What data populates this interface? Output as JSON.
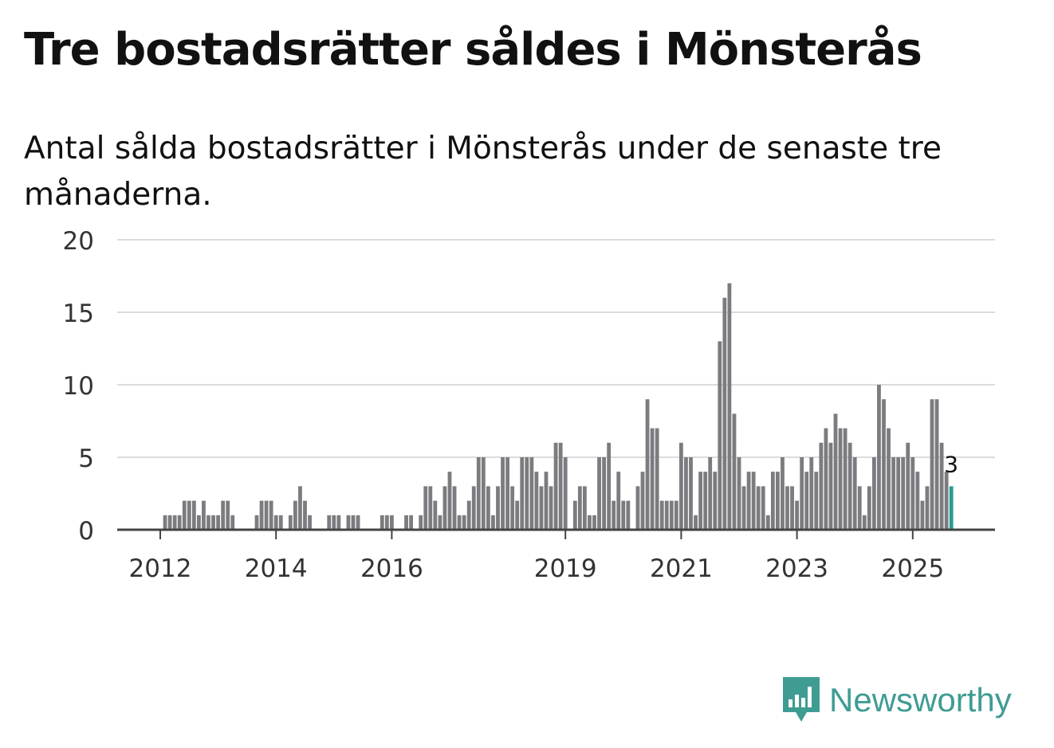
{
  "header": {
    "title": "Tre bostadsrätter såldes i Mönsterås",
    "subtitle": "Antal sålda bostadsrätter i Mönsterås under de senaste tre månaderna."
  },
  "brand": {
    "name": "Newsworthy",
    "icon": "newsworthy-logo-icon",
    "color": "#3f9c93"
  },
  "colors": {
    "bar": "#7b7b80",
    "highlight": "#2a9c94",
    "grid": "#dcdcdc",
    "axis": "#444444",
    "text": "#333333"
  },
  "chart_data": {
    "type": "bar",
    "title": "Tre bostadsrätter såldes i Mönsterås",
    "xlabel": "",
    "ylabel": "",
    "ylim": [
      0,
      20
    ],
    "yticks": [
      0,
      5,
      10,
      15,
      20
    ],
    "grid": true,
    "x_start": "2011-01",
    "xticks": [
      {
        "label": "2012",
        "month_index": 12
      },
      {
        "label": "2014",
        "month_index": 36
      },
      {
        "label": "2016",
        "month_index": 60
      },
      {
        "label": "2019",
        "month_index": 96
      },
      {
        "label": "2021",
        "month_index": 120
      },
      {
        "label": "2023",
        "month_index": 144
      },
      {
        "label": "2025",
        "month_index": 168
      }
    ],
    "highlight_label": "3",
    "values": [
      0,
      0,
      0,
      0,
      0,
      0,
      0,
      0,
      0,
      0,
      0,
      0,
      0,
      1,
      1,
      1,
      1,
      2,
      2,
      2,
      1,
      2,
      1,
      1,
      1,
      2,
      2,
      1,
      0,
      0,
      0,
      0,
      1,
      2,
      2,
      2,
      1,
      1,
      0,
      1,
      2,
      3,
      2,
      1,
      0,
      0,
      0,
      1,
      1,
      1,
      0,
      1,
      1,
      1,
      0,
      0,
      0,
      0,
      1,
      1,
      1,
      0,
      0,
      1,
      1,
      0,
      1,
      3,
      3,
      2,
      1,
      3,
      4,
      3,
      1,
      1,
      2,
      3,
      5,
      5,
      3,
      1,
      3,
      5,
      5,
      3,
      2,
      5,
      5,
      5,
      4,
      3,
      4,
      3,
      6,
      6,
      5,
      0,
      2,
      3,
      3,
      1,
      1,
      5,
      5,
      6,
      2,
      4,
      2,
      2,
      0,
      3,
      4,
      9,
      7,
      7,
      2,
      2,
      2,
      2,
      6,
      5,
      5,
      1,
      4,
      4,
      5,
      4,
      13,
      16,
      17,
      8,
      5,
      3,
      4,
      4,
      3,
      3,
      1,
      4,
      4,
      5,
      3,
      3,
      2,
      5,
      4,
      5,
      4,
      6,
      7,
      6,
      8,
      7,
      7,
      6,
      5,
      3,
      1,
      3,
      5,
      10,
      9,
      7,
      5,
      5,
      5,
      6,
      5,
      4,
      2,
      3,
      9,
      9,
      6,
      4,
      3
    ]
  }
}
